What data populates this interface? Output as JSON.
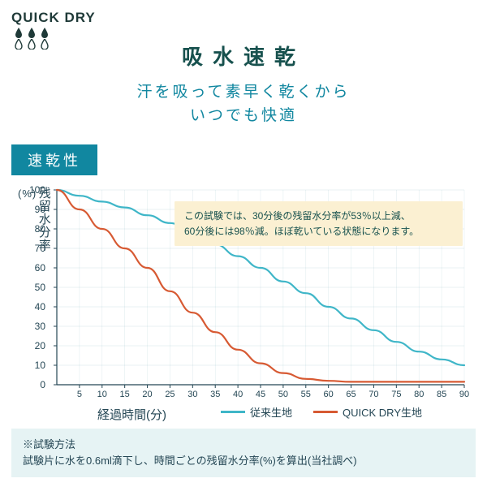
{
  "logo": {
    "text": "QUICK DRY"
  },
  "title": "吸水速乾",
  "subtitle_l1": "汗を吸って素早く乾くから",
  "subtitle_l2": "いつでも快適",
  "badge": "速乾性",
  "chart": {
    "type": "line",
    "ylabel": "残留水分率",
    "ylabel_unit": "(%)",
    "xlabel": "経過時間(分)",
    "ylim": [
      0,
      100
    ],
    "xlim": [
      0,
      90
    ],
    "ytick_step": 10,
    "xtick_step": 5,
    "grid_color": "#5a9aa8",
    "grid_width": 0.4,
    "axis_color": "#244654",
    "background_color": "#ffffff",
    "series": [
      {
        "name": "従来生地",
        "color": "#3fb6c8",
        "width": 2.2,
        "x": [
          0,
          5,
          10,
          15,
          20,
          25,
          30,
          35,
          40,
          45,
          50,
          55,
          60,
          65,
          70,
          75,
          80,
          85,
          90
        ],
        "y": [
          100,
          97,
          94,
          91,
          87,
          83,
          78,
          72,
          66,
          60,
          53,
          47,
          40,
          34,
          28,
          22,
          17,
          13,
          10
        ]
      },
      {
        "name": "QUICK DRY生地",
        "color": "#d75a33",
        "width": 2.2,
        "x": [
          0,
          5,
          10,
          15,
          20,
          25,
          30,
          35,
          40,
          45,
          50,
          55,
          60,
          65,
          70,
          75,
          80,
          85,
          90
        ],
        "y": [
          100,
          90,
          80,
          70,
          60,
          48,
          37,
          27,
          18,
          11,
          6,
          3,
          2,
          1.5,
          1.5,
          1.5,
          1.5,
          1.5,
          1.5
        ]
      }
    ],
    "annotation": {
      "line1": "この試験では、30分後の残留水分率が53％以上減、",
      "line2": "60分後には98％減。ほぼ乾いている状態になります。",
      "bg": "#fbf0d2"
    }
  },
  "legend": {
    "item1": "従来生地",
    "item2": "QUICK DRY生地"
  },
  "method": {
    "heading": "※試験方法",
    "body": "試験片に水を0.6ml滴下し、時間ごとの残留水分率(%)を算出(当社調べ)",
    "bg": "#e6f3f4"
  },
  "colors": {
    "title": "#17514e",
    "subtitle": "#1187a0",
    "badge_bg": "#1187a0",
    "text": "#244654"
  }
}
